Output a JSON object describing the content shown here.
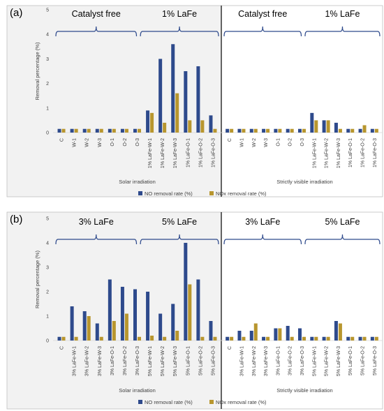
{
  "chart_data": [
    {
      "type": "bar",
      "panel_label": "(a)",
      "ylabel": "Removal percentage (%)",
      "ylim": [
        0,
        5
      ],
      "yticks": [
        0,
        1,
        2,
        3,
        4,
        5
      ],
      "grid": false,
      "colors": {
        "NO removal rate (%)": "#2E4A8C",
        "NOx removal rate (%)": "#B8962E"
      },
      "sections": [
        {
          "label": "Solar irradiation",
          "categories": [
            "C",
            "W-1",
            "W-2",
            "W-3",
            "O-1",
            "O-2",
            "O-3",
            "1% LaFe-W-1",
            "1% LaFe-W-2",
            "1% LaFe-W-3",
            "1% LaFe-O-1",
            "1% LaFe-O-2",
            "1% LaFe-O-3"
          ],
          "groups": [
            "Catalyst free",
            "1% LaFe"
          ],
          "series": [
            {
              "name": "NO removal rate (%)",
              "values": [
                0.15,
                0.15,
                0.15,
                0.15,
                0.15,
                0.15,
                0.15,
                0.9,
                3.0,
                3.6,
                2.5,
                2.7,
                0.7
              ]
            },
            {
              "name": "NOx removal rate (%)",
              "values": [
                0.15,
                0.15,
                0.15,
                0.15,
                0.15,
                0.15,
                0.15,
                0.8,
                0.4,
                1.6,
                0.5,
                0.5,
                0.15
              ]
            }
          ]
        },
        {
          "label": "Strictly visible irradiation",
          "categories": [
            "C",
            "W-1",
            "W-2",
            "W-3",
            "O-1",
            "O-2",
            "O-3",
            "1% LaFe-W-1",
            "1% LaFe-W-2",
            "1% LaFe-W-3",
            "1% LaFe-O-1",
            "1% LaFe-O-2",
            "1% LaFe-O-3"
          ],
          "groups": [
            "Catalyst free",
            "1% LaFe"
          ],
          "series": [
            {
              "name": "NO removal rate (%)",
              "values": [
                0.15,
                0.15,
                0.15,
                0.15,
                0.15,
                0.15,
                0.15,
                0.8,
                0.5,
                0.4,
                0.15,
                0.15,
                0.15
              ]
            },
            {
              "name": "NOx removal rate (%)",
              "values": [
                0.15,
                0.15,
                0.15,
                0.15,
                0.15,
                0.15,
                0.15,
                0.5,
                0.5,
                0.15,
                0.15,
                0.3,
                0.15
              ]
            }
          ]
        }
      ],
      "legend": [
        "NO removal rate (%)",
        "NOx removal rate (%)"
      ]
    },
    {
      "type": "bar",
      "panel_label": "(b)",
      "ylabel": "Removal percentage (%)",
      "ylim": [
        0,
        5
      ],
      "yticks": [
        0,
        1,
        2,
        3,
        4,
        5
      ],
      "grid": false,
      "colors": {
        "NO removal rate (%)": "#2E4A8C",
        "NOx removal rate (%)": "#B8962E"
      },
      "sections": [
        {
          "label": "Solar irradiation",
          "categories": [
            "C",
            "3% LaFe-W-1",
            "3% LaFe-W-2",
            "3% LaFe-W-3",
            "3% LaFe-O-1",
            "3% LaFe-O-2",
            "3% LaFe-O-3",
            "5% LaFe-W-1",
            "5% LaFe-W-2",
            "5% LaFe-W-3",
            "5% LaFe-O-1",
            "5% LaFe-O-2",
            "5% LaFe-O-3"
          ],
          "groups": [
            "3% LaFe",
            "5% LaFe"
          ],
          "series": [
            {
              "name": "NO removal rate (%)",
              "values": [
                0.15,
                1.4,
                1.2,
                0.7,
                2.5,
                2.2,
                2.1,
                2.0,
                1.1,
                1.5,
                4.0,
                2.5,
                0.8
              ]
            },
            {
              "name": "NOx removal rate (%)",
              "values": [
                0.15,
                0.15,
                1.0,
                0.15,
                0.8,
                1.1,
                0.15,
                0.2,
                0.15,
                0.4,
                2.3,
                0.15,
                0.15
              ]
            }
          ]
        },
        {
          "label": "Strictly visible irradiation",
          "categories": [
            "C",
            "3% LaFe-W-1",
            "3% LaFe-W-2",
            "3% LaFe-W-3",
            "3% LaFe-O-1",
            "3% LaFe-O-2",
            "3% LaFe-O-3",
            "5% LaFe-W-1",
            "5% LaFe-W-2",
            "5% LaFe-W-3",
            "5% LaFe-O-1",
            "5% LaFe-O-2",
            "5% LaFe-O-3"
          ],
          "groups": [
            "3% LaFe",
            "5% LaFe"
          ],
          "series": [
            {
              "name": "NO removal rate (%)",
              "values": [
                0.15,
                0.4,
                0.4,
                0.15,
                0.5,
                0.6,
                0.5,
                0.15,
                0.15,
                0.8,
                0.15,
                0.15,
                0.15
              ]
            },
            {
              "name": "NOx removal rate (%)",
              "values": [
                0.15,
                0.15,
                0.7,
                0.15,
                0.5,
                0.15,
                0.15,
                0.15,
                0.15,
                0.7,
                0.15,
                0.15,
                0.15
              ]
            }
          ]
        }
      ],
      "legend": [
        "NO removal rate (%)",
        "NOx removal rate (%)"
      ]
    }
  ]
}
